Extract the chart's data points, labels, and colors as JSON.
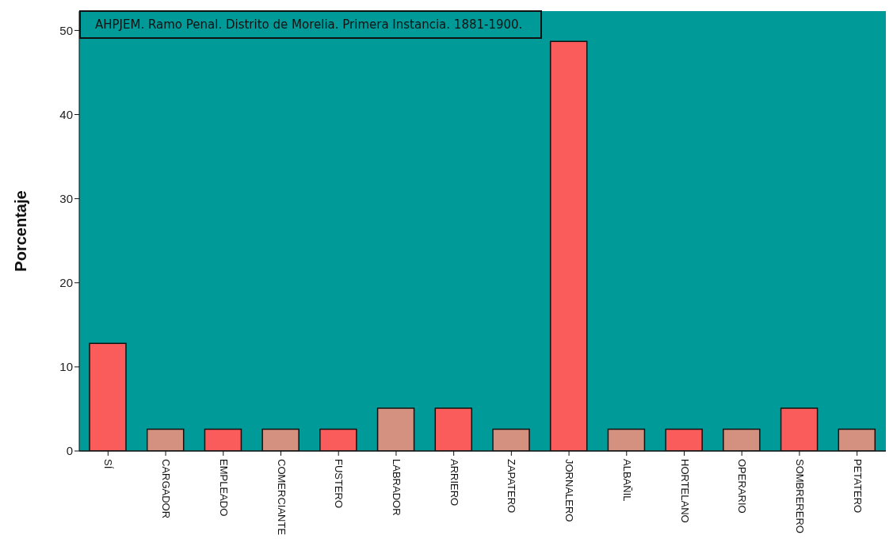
{
  "chart_data": {
    "type": "bar",
    "ylabel": "Porcentaje",
    "annotations": [
      "AHPJEM. Ramo Penal. Distrito de Morelia. Primera Instancia. 1881-1900."
    ],
    "categories": [
      "SÍ",
      "CARGADOR",
      "EMPLEADO",
      "COMERCIANTE",
      "FUSTERO",
      "LABRADOR",
      "ARRIERO",
      "ZAPATERO",
      "JORNALERO",
      "ALBAÑIL",
      "HORTELANO",
      "OPERARIO",
      "SOMBRERERO",
      "PETATERO"
    ],
    "values": [
      12.8,
      2.6,
      2.6,
      2.6,
      2.6,
      5.1,
      5.1,
      2.6,
      48.7,
      2.6,
      2.6,
      2.6,
      5.1,
      2.6
    ],
    "colors": [
      "#fa5c5c",
      "#d4917f",
      "#fa5c5c",
      "#d4917f",
      "#fa5c5c",
      "#d4917f",
      "#fa5c5c",
      "#d4917f",
      "#fa5c5c",
      "#d4917f",
      "#fa5c5c",
      "#d4917f",
      "#fa5c5c",
      "#d4917f"
    ],
    "ylim": [
      0,
      52.3
    ],
    "yticks": [
      0,
      10,
      20,
      30,
      40,
      50
    ],
    "grid": false,
    "legend": false
  }
}
